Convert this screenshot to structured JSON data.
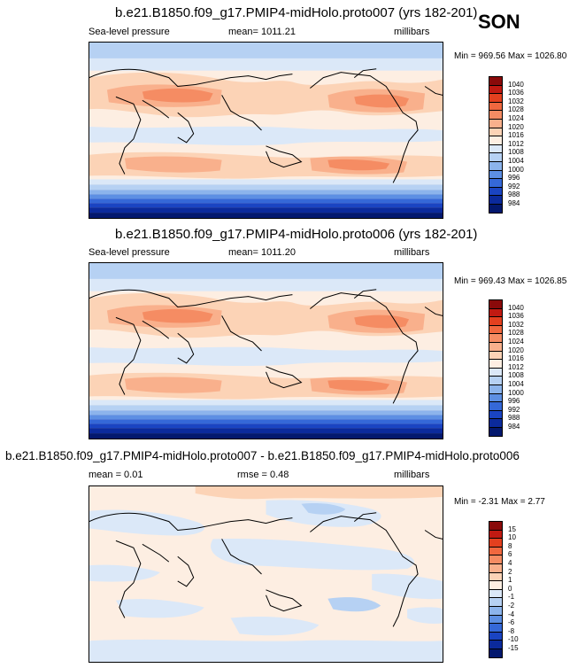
{
  "season": "SON",
  "panels": [
    {
      "title": "b.e21.B1850.f09_g17.PMIP4-midHolo.proto007 (yrs 182-201)",
      "left_label": "Sea-level pressure",
      "center_label": "mean= 1011.21",
      "right_label": "millibars",
      "minmax": "Min = 969.56 Max = 1026.80"
    },
    {
      "title": "b.e21.B1850.f09_g17.PMIP4-midHolo.proto006 (yrs 182-201)",
      "left_label": "Sea-level pressure",
      "center_label": "mean= 1011.20",
      "right_label": "millibars",
      "minmax": "Min = 969.43 Max = 1026.85"
    },
    {
      "title": "b.e21.B1850.f09_g17.PMIP4-midHolo.proto007 - b.e21.B1850.f09_g17.PMIP4-midHolo.proto006",
      "left_label": "mean =  0.01",
      "center_label": "rmse =  0.48",
      "right_label": "millibars",
      "minmax": "Min =  -2.31 Max =  2.77"
    }
  ],
  "colorbar_abs": {
    "labels": [
      "1040",
      "1036",
      "1032",
      "1028",
      "1024",
      "1020",
      "1016",
      "1012",
      "1008",
      "1004",
      "1000",
      "996",
      "992",
      "988",
      "984"
    ],
    "colors": [
      "#8a0a0a",
      "#c11a12",
      "#e3401f",
      "#f0683f",
      "#f58c63",
      "#f9b08c",
      "#fcd3b6",
      "#fdeee2",
      "#dbe8f8",
      "#b6d1f3",
      "#8cb4ec",
      "#5d8fe3",
      "#3568d8",
      "#1a44c2",
      "#0b2a9c",
      "#03186e"
    ]
  },
  "colorbar_diff": {
    "labels": [
      "15",
      "10",
      "8",
      "6",
      "4",
      "2",
      "1",
      "0",
      "-1",
      "-2",
      "-4",
      "-6",
      "-8",
      "-10",
      "-15"
    ],
    "colors": [
      "#8a0a0a",
      "#c11a12",
      "#e3401f",
      "#f0683f",
      "#f58c63",
      "#f9b08c",
      "#fcd3b6",
      "#fdeee2",
      "#dbe8f8",
      "#b6d1f3",
      "#8cb4ec",
      "#5d8fe3",
      "#3568d8",
      "#1a44c2",
      "#0b2a9c",
      "#03186e"
    ]
  }
}
